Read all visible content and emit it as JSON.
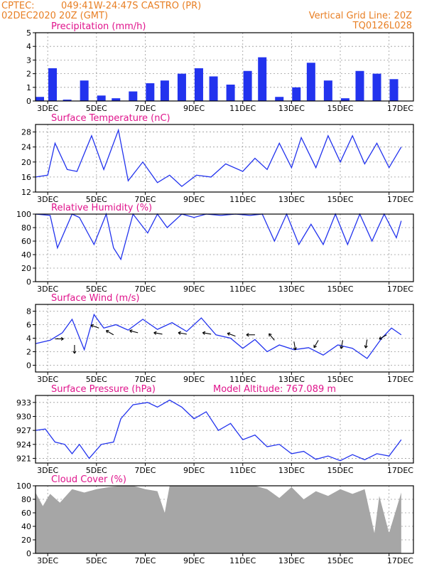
{
  "header": {
    "source": "CPTEC:",
    "location": "049:41W-24:47S   CASTRO (PR)",
    "init_time": "02DEC2020 20Z (GMT)",
    "vertical_grid_line": "Vertical Grid Line: 20Z",
    "code": "TQ0126L028"
  },
  "colors": {
    "header": "#e87f24",
    "panel_title": "#e0148c",
    "series": "#2233ee",
    "cloud_fill": "#a6a6a6",
    "grid": "#9a9a9a"
  },
  "chart_data": [
    {
      "type": "bar",
      "title": "Precipitation (mm/h)",
      "x_tick_labels": [
        "3DEC",
        "5DEC",
        "7DEC",
        "9DEC",
        "11DEC",
        "13DEC",
        "15DEC",
        "17DEC"
      ],
      "ylim": [
        0,
        5
      ],
      "yticks": [
        0,
        1,
        2,
        3,
        4,
        5
      ],
      "grid": true,
      "series_color": "#2233ee",
      "x": [
        0.0,
        0.7,
        1.3,
        2.0,
        2.7,
        3.3,
        4.0,
        4.7,
        5.3,
        6.0,
        6.7,
        7.3,
        8.0,
        8.7,
        9.3,
        10.0,
        10.7,
        11.3,
        12.0,
        12.7,
        13.3,
        14.0,
        14.7
      ],
      "values": [
        0.3,
        2.4,
        0.1,
        1.5,
        0.4,
        0.2,
        0.7,
        1.3,
        1.5,
        2.0,
        2.4,
        1.8,
        1.2,
        2.2,
        3.2,
        0.3,
        1.0,
        2.8,
        1.5,
        0.2,
        2.2,
        2.0,
        1.6
      ],
      "xlabel": "",
      "ylabel": ""
    },
    {
      "type": "line",
      "title": "Surface Temperature (nC)",
      "x_tick_labels": [
        "3DEC",
        "5DEC",
        "7DEC",
        "9DEC",
        "11DEC",
        "13DEC",
        "15DEC",
        "17DEC"
      ],
      "ylim": [
        12,
        30
      ],
      "yticks": [
        12,
        16,
        20,
        24,
        28
      ],
      "grid": true,
      "series_color": "#2233ee",
      "x": [
        0.0,
        0.5,
        0.8,
        1.3,
        1.7,
        2.3,
        2.8,
        3.4,
        3.8,
        4.4,
        5.0,
        5.5,
        6.0,
        6.6,
        7.2,
        7.8,
        8.5,
        9.0,
        9.5,
        10.0,
        10.5,
        10.9,
        11.5,
        12.0,
        12.5,
        13.0,
        13.5,
        14.0,
        14.5,
        15.0
      ],
      "values": [
        16.0,
        16.5,
        25.0,
        18.0,
        17.5,
        27.0,
        18.0,
        28.5,
        15.0,
        20.0,
        14.5,
        16.5,
        13.5,
        16.5,
        16.0,
        19.5,
        17.5,
        21.0,
        18.0,
        25.0,
        18.5,
        26.5,
        18.5,
        27.0,
        20.0,
        27.0,
        19.5,
        25.0,
        18.5,
        24.0
      ],
      "xlabel": "",
      "ylabel": ""
    },
    {
      "type": "line",
      "title": "Relative Humidity (%)",
      "x_tick_labels": [
        "3DEC",
        "5DEC",
        "7DEC",
        "9DEC",
        "11DEC",
        "13DEC",
        "15DEC",
        "17DEC"
      ],
      "ylim": [
        0,
        100
      ],
      "yticks": [
        0,
        20,
        40,
        60,
        80,
        100
      ],
      "grid": true,
      "series_color": "#2233ee",
      "x": [
        0.0,
        0.6,
        0.9,
        1.5,
        1.8,
        2.4,
        2.9,
        3.2,
        3.5,
        4.0,
        4.6,
        5.0,
        5.4,
        6.0,
        6.5,
        7.0,
        7.6,
        8.2,
        8.8,
        9.3,
        9.8,
        10.3,
        10.8,
        11.3,
        11.8,
        12.3,
        12.8,
        13.3,
        13.8,
        14.3,
        14.8,
        15.0
      ],
      "values": [
        100,
        98,
        50,
        100,
        95,
        55,
        100,
        50,
        33,
        100,
        72,
        100,
        80,
        100,
        95,
        100,
        98,
        100,
        98,
        100,
        60,
        100,
        55,
        85,
        55,
        100,
        55,
        100,
        60,
        100,
        65,
        90
      ],
      "xlabel": "",
      "ylabel": ""
    },
    {
      "type": "line",
      "title": "Surface Wind (m/s)",
      "x_tick_labels": [
        "3DEC",
        "5DEC",
        "7DEC",
        "9DEC",
        "11DEC",
        "13DEC",
        "15DEC",
        "17DEC"
      ],
      "ylim": [
        -1,
        9
      ],
      "yticks": [
        0,
        2,
        4,
        6,
        8
      ],
      "grid": true,
      "series_color": "#2233ee",
      "x": [
        0.0,
        0.6,
        1.1,
        1.5,
        2.0,
        2.4,
        2.8,
        3.3,
        3.8,
        4.4,
        5.0,
        5.6,
        6.2,
        6.8,
        7.4,
        8.0,
        8.5,
        9.0,
        9.5,
        10.0,
        10.6,
        11.2,
        11.8,
        12.4,
        13.0,
        13.6,
        14.2,
        14.6,
        15.0
      ],
      "values": [
        3.2,
        3.7,
        4.8,
        6.8,
        2.3,
        7.5,
        5.5,
        6.0,
        5.2,
        6.8,
        5.3,
        6.3,
        5.0,
        7.0,
        4.5,
        4.0,
        2.5,
        3.8,
        2.0,
        3.0,
        2.3,
        2.6,
        1.5,
        3.0,
        2.5,
        1.0,
        4.0,
        5.5,
        4.5
      ],
      "wind_barbs_x": [
        0.8,
        1.6,
        2.6,
        3.2,
        4.2,
        5.2,
        6.2,
        7.2,
        8.2,
        9.0,
        9.8,
        10.6,
        11.6,
        12.6,
        13.6,
        14.4
      ],
      "wind_barbs_level": [
        3.9,
        3.0,
        5.5,
        4.5,
        4.8,
        4.6,
        4.6,
        4.6,
        4.3,
        4.5,
        3.7,
        3.5,
        3.7,
        3.7,
        3.8,
        4.5
      ],
      "wind_barbs_direction_deg": [
        0,
        90,
        200,
        210,
        195,
        190,
        190,
        190,
        200,
        180,
        230,
        80,
        120,
        100,
        100,
        150
      ],
      "xlabel": "",
      "ylabel": ""
    },
    {
      "type": "line",
      "title": "Surface Pressure (hPa)",
      "annotation": "Model Altitude: 767.089  m",
      "x_tick_labels": [
        "3DEC",
        "5DEC",
        "7DEC",
        "9DEC",
        "11DEC",
        "13DEC",
        "15DEC",
        "17DEC"
      ],
      "ylim": [
        920,
        934.5
      ],
      "yticks": [
        921,
        924,
        927,
        930,
        933
      ],
      "grid": true,
      "series_color": "#2233ee",
      "x": [
        0.0,
        0.4,
        0.8,
        1.2,
        1.5,
        1.8,
        2.2,
        2.7,
        3.2,
        3.5,
        4.0,
        4.6,
        5.0,
        5.5,
        6.0,
        6.5,
        7.0,
        7.5,
        8.0,
        8.5,
        9.0,
        9.5,
        10.0,
        10.5,
        11.0,
        11.5,
        12.0,
        12.5,
        13.0,
        13.5,
        14.0,
        14.5,
        15.0
      ],
      "values": [
        927.0,
        927.3,
        924.5,
        924.0,
        922.0,
        924.0,
        921.0,
        924.0,
        924.5,
        929.5,
        932.5,
        933.0,
        932.0,
        933.5,
        932.0,
        929.5,
        931.0,
        927.0,
        928.5,
        925.0,
        926.0,
        923.5,
        924.0,
        922.0,
        922.5,
        920.8,
        921.5,
        920.5,
        921.8,
        920.7,
        922.0,
        921.5,
        925.0
      ],
      "xlabel": "",
      "ylabel": ""
    },
    {
      "type": "area",
      "title": "Cloud Cover (%)",
      "x_tick_labels": [
        "3DEC",
        "5DEC",
        "7DEC",
        "9DEC",
        "11DEC",
        "13DEC",
        "15DEC",
        "17DEC"
      ],
      "ylim": [
        0,
        100
      ],
      "yticks": [
        0,
        20,
        40,
        60,
        80,
        100
      ],
      "grid": true,
      "series_color": "#a6a6a6",
      "x": [
        0.0,
        0.3,
        0.6,
        1.0,
        1.5,
        2.0,
        2.5,
        3.0,
        3.5,
        4.0,
        4.5,
        5.0,
        5.3,
        5.5,
        5.8,
        6.5,
        7.0,
        8.0,
        9.0,
        9.5,
        10.0,
        10.5,
        11.0,
        11.5,
        12.0,
        12.5,
        13.0,
        13.5,
        13.9,
        14.1,
        14.5,
        15.0
      ],
      "values": [
        90,
        70,
        88,
        75,
        95,
        90,
        95,
        98,
        100,
        100,
        95,
        92,
        60,
        100,
        100,
        100,
        100,
        100,
        100,
        95,
        82,
        98,
        80,
        92,
        85,
        95,
        88,
        95,
        30,
        85,
        30,
        90
      ],
      "xlabel": "",
      "ylabel": ""
    }
  ]
}
